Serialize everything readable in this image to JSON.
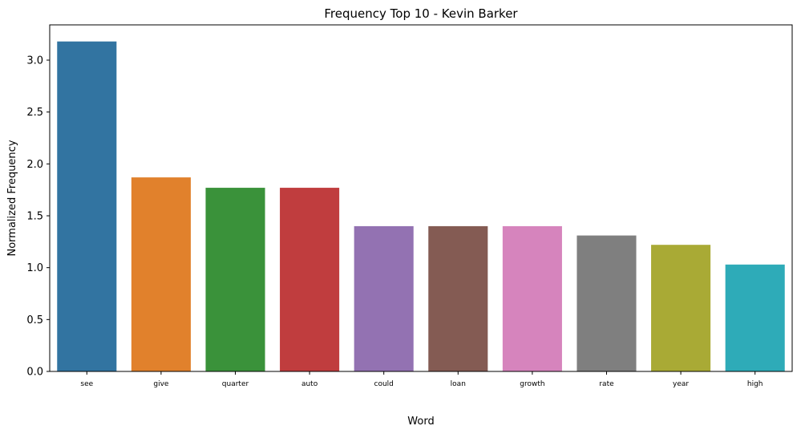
{
  "chart_data": {
    "type": "bar",
    "title": "Frequency Top 10 - Kevin Barker",
    "xlabel": "Word",
    "ylabel": "Normalized Frequency",
    "categories": [
      "see",
      "give",
      "quarter",
      "auto",
      "could",
      "loan",
      "growth",
      "rate",
      "year",
      "high"
    ],
    "values": [
      3.18,
      1.87,
      1.77,
      1.77,
      1.4,
      1.4,
      1.4,
      1.31,
      1.22,
      1.03
    ],
    "colors": [
      "#3274a1",
      "#e1812c",
      "#3a923a",
      "#c03d3e",
      "#9372b2",
      "#845b53",
      "#d684bd",
      "#7f7f7f",
      "#a9aa35",
      "#2eabb8"
    ],
    "ylim": [
      0,
      3.34
    ],
    "yticks": [
      0.0,
      0.5,
      1.0,
      1.5,
      2.0,
      2.5,
      3.0
    ],
    "ytick_labels": [
      "0.0",
      "0.5",
      "1.0",
      "1.5",
      "2.0",
      "2.5",
      "3.0"
    ],
    "grid": false,
    "legend": "none"
  }
}
